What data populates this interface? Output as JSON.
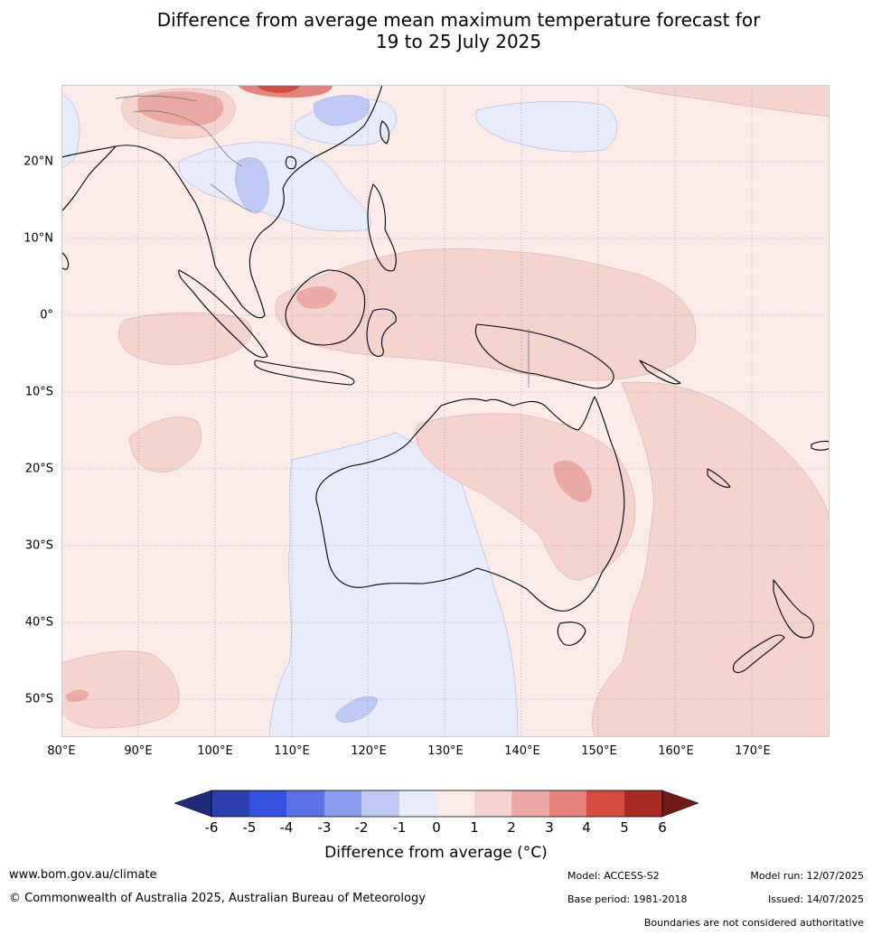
{
  "title": {
    "line1": "Difference from average mean maximum temperature forecast for",
    "line2": "19 to 25 July 2025"
  },
  "lat_labels": [
    "20°N",
    "10°N",
    "0°",
    "10°S",
    "20°S",
    "30°S",
    "40°S",
    "50°S"
  ],
  "lon_labels": [
    "80°E",
    "90°E",
    "100°E",
    "110°E",
    "120°E",
    "130°E",
    "140°E",
    "150°E",
    "160°E",
    "170°E"
  ],
  "colorbar": {
    "title": "Difference from average (°C)",
    "ticks": [
      "-6",
      "-5",
      "-4",
      "-3",
      "-2",
      "-1",
      "0",
      "1",
      "2",
      "3",
      "4",
      "5",
      "6"
    ],
    "colors": [
      "#1f2a7a",
      "#2a3eb0",
      "#3353e0",
      "#5a72e6",
      "#8a9cee",
      "#c0c8f4",
      "#e8ecfb",
      "#fbecea",
      "#f5d3d0",
      "#ecaaa5",
      "#e5827c",
      "#d84a40",
      "#a82a22",
      "#6e1a16"
    ]
  },
  "footer": {
    "website": "www.bom.gov.au/climate",
    "copyright": "© Commonwealth of Australia 2025, Australian Bureau of Meteorology",
    "model": "Model: ACCESS-S2",
    "base_period": "Base period: 1981-2018",
    "model_run": "Model run: 12/07/2025",
    "issued": "Issued: 14/07/2025",
    "disclaimer": "Boundaries are not considered authoritative"
  },
  "map": {
    "background_color": "#fbecea",
    "anomaly_colors": {
      "below_1": "#e8ecfb",
      "below_2": "#c0c8f4",
      "above_1": "#f5d3d0",
      "above_2": "#ecaaa5",
      "above_3": "#e5827c",
      "above_4": "#d84a40"
    },
    "coastline_color": "#000000",
    "boundary_color": "#777777",
    "grid_color": "#888888"
  }
}
